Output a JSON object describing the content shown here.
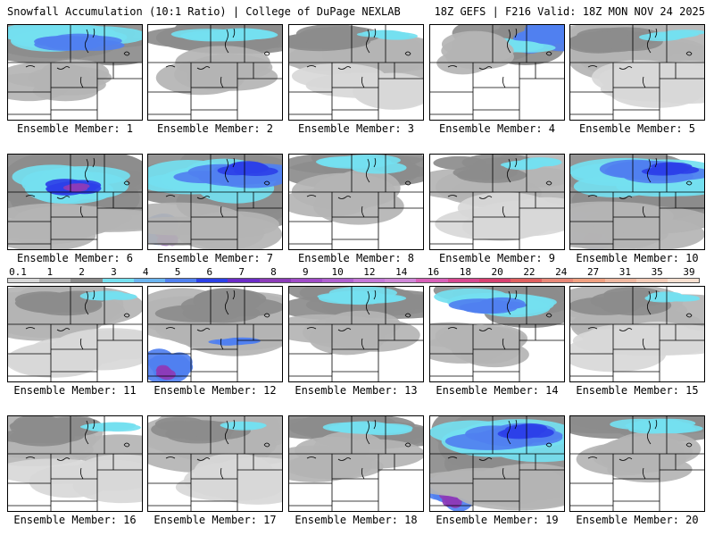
{
  "header": {
    "left": "Snowfall Accumulation (10:1 Ratio) | College of DuPage NEXLAB",
    "right": "18Z GEFS | F216 Valid: 18Z MON NOV 24 2025"
  },
  "members": [
    {
      "label": "Ensemble Member: 1",
      "snow": "heavy-north"
    },
    {
      "label": "Ensemble Member: 2",
      "snow": "north"
    },
    {
      "label": "Ensemble Member: 3",
      "snow": "light"
    },
    {
      "label": "Ensemble Member: 4",
      "snow": "northeast"
    },
    {
      "label": "Ensemble Member: 5",
      "snow": "light"
    },
    {
      "label": "Ensemble Member: 6",
      "snow": "heavy-center"
    },
    {
      "label": "Ensemble Member: 7",
      "snow": "heavy-wide"
    },
    {
      "label": "Ensemble Member: 8",
      "snow": "north"
    },
    {
      "label": "Ensemble Member: 9",
      "snow": "light"
    },
    {
      "label": "Ensemble Member: 10",
      "snow": "heavy-wide"
    },
    {
      "label": "Ensemble Member: 11",
      "snow": "light"
    },
    {
      "label": "Ensemble Member: 12",
      "snow": "southwest"
    },
    {
      "label": "Ensemble Member: 13",
      "snow": "north"
    },
    {
      "label": "Ensemble Member: 14",
      "snow": "heavy-north"
    },
    {
      "label": "Ensemble Member: 15",
      "snow": "light"
    },
    {
      "label": "Ensemble Member: 16",
      "snow": "light"
    },
    {
      "label": "Ensemble Member: 17",
      "snow": "light"
    },
    {
      "label": "Ensemble Member: 18",
      "snow": "north"
    },
    {
      "label": "Ensemble Member: 19",
      "snow": "heavy-wide"
    },
    {
      "label": "Ensemble Member: 20",
      "snow": "north"
    }
  ],
  "colorbar": {
    "labels": [
      "0.1",
      "1",
      "2",
      "3",
      "4",
      "5",
      "6",
      "7",
      "8",
      "9",
      "10",
      "12",
      "14",
      "16",
      "18",
      "20",
      "22",
      "24",
      "27",
      "31",
      "35",
      "39"
    ],
    "colors": [
      "#d8d8d8",
      "#b4b4b4",
      "#8c8c8c",
      "#74e0f0",
      "#6ab4f0",
      "#5080f0",
      "#2c40e8",
      "#6c2cc8",
      "#8c3cb8",
      "#a04cc8",
      "#b060d0",
      "#c478d8",
      "#d088d8",
      "#d860b8",
      "#d84890",
      "#d84070",
      "#e06060",
      "#e88878",
      "#f0a080",
      "#f0b8a0",
      "#f4ccb8",
      "#f8e0d0"
    ]
  }
}
